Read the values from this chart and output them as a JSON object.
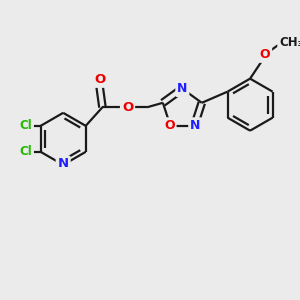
{
  "bg_color": "#ebebeb",
  "bond_color": "#1a1a1a",
  "atom_colors": {
    "C": "#1a1a1a",
    "N": "#2020ff",
    "O": "#ee0000",
    "Cl": "#22bb00"
  },
  "figsize": [
    3.0,
    3.0
  ],
  "dpi": 100
}
